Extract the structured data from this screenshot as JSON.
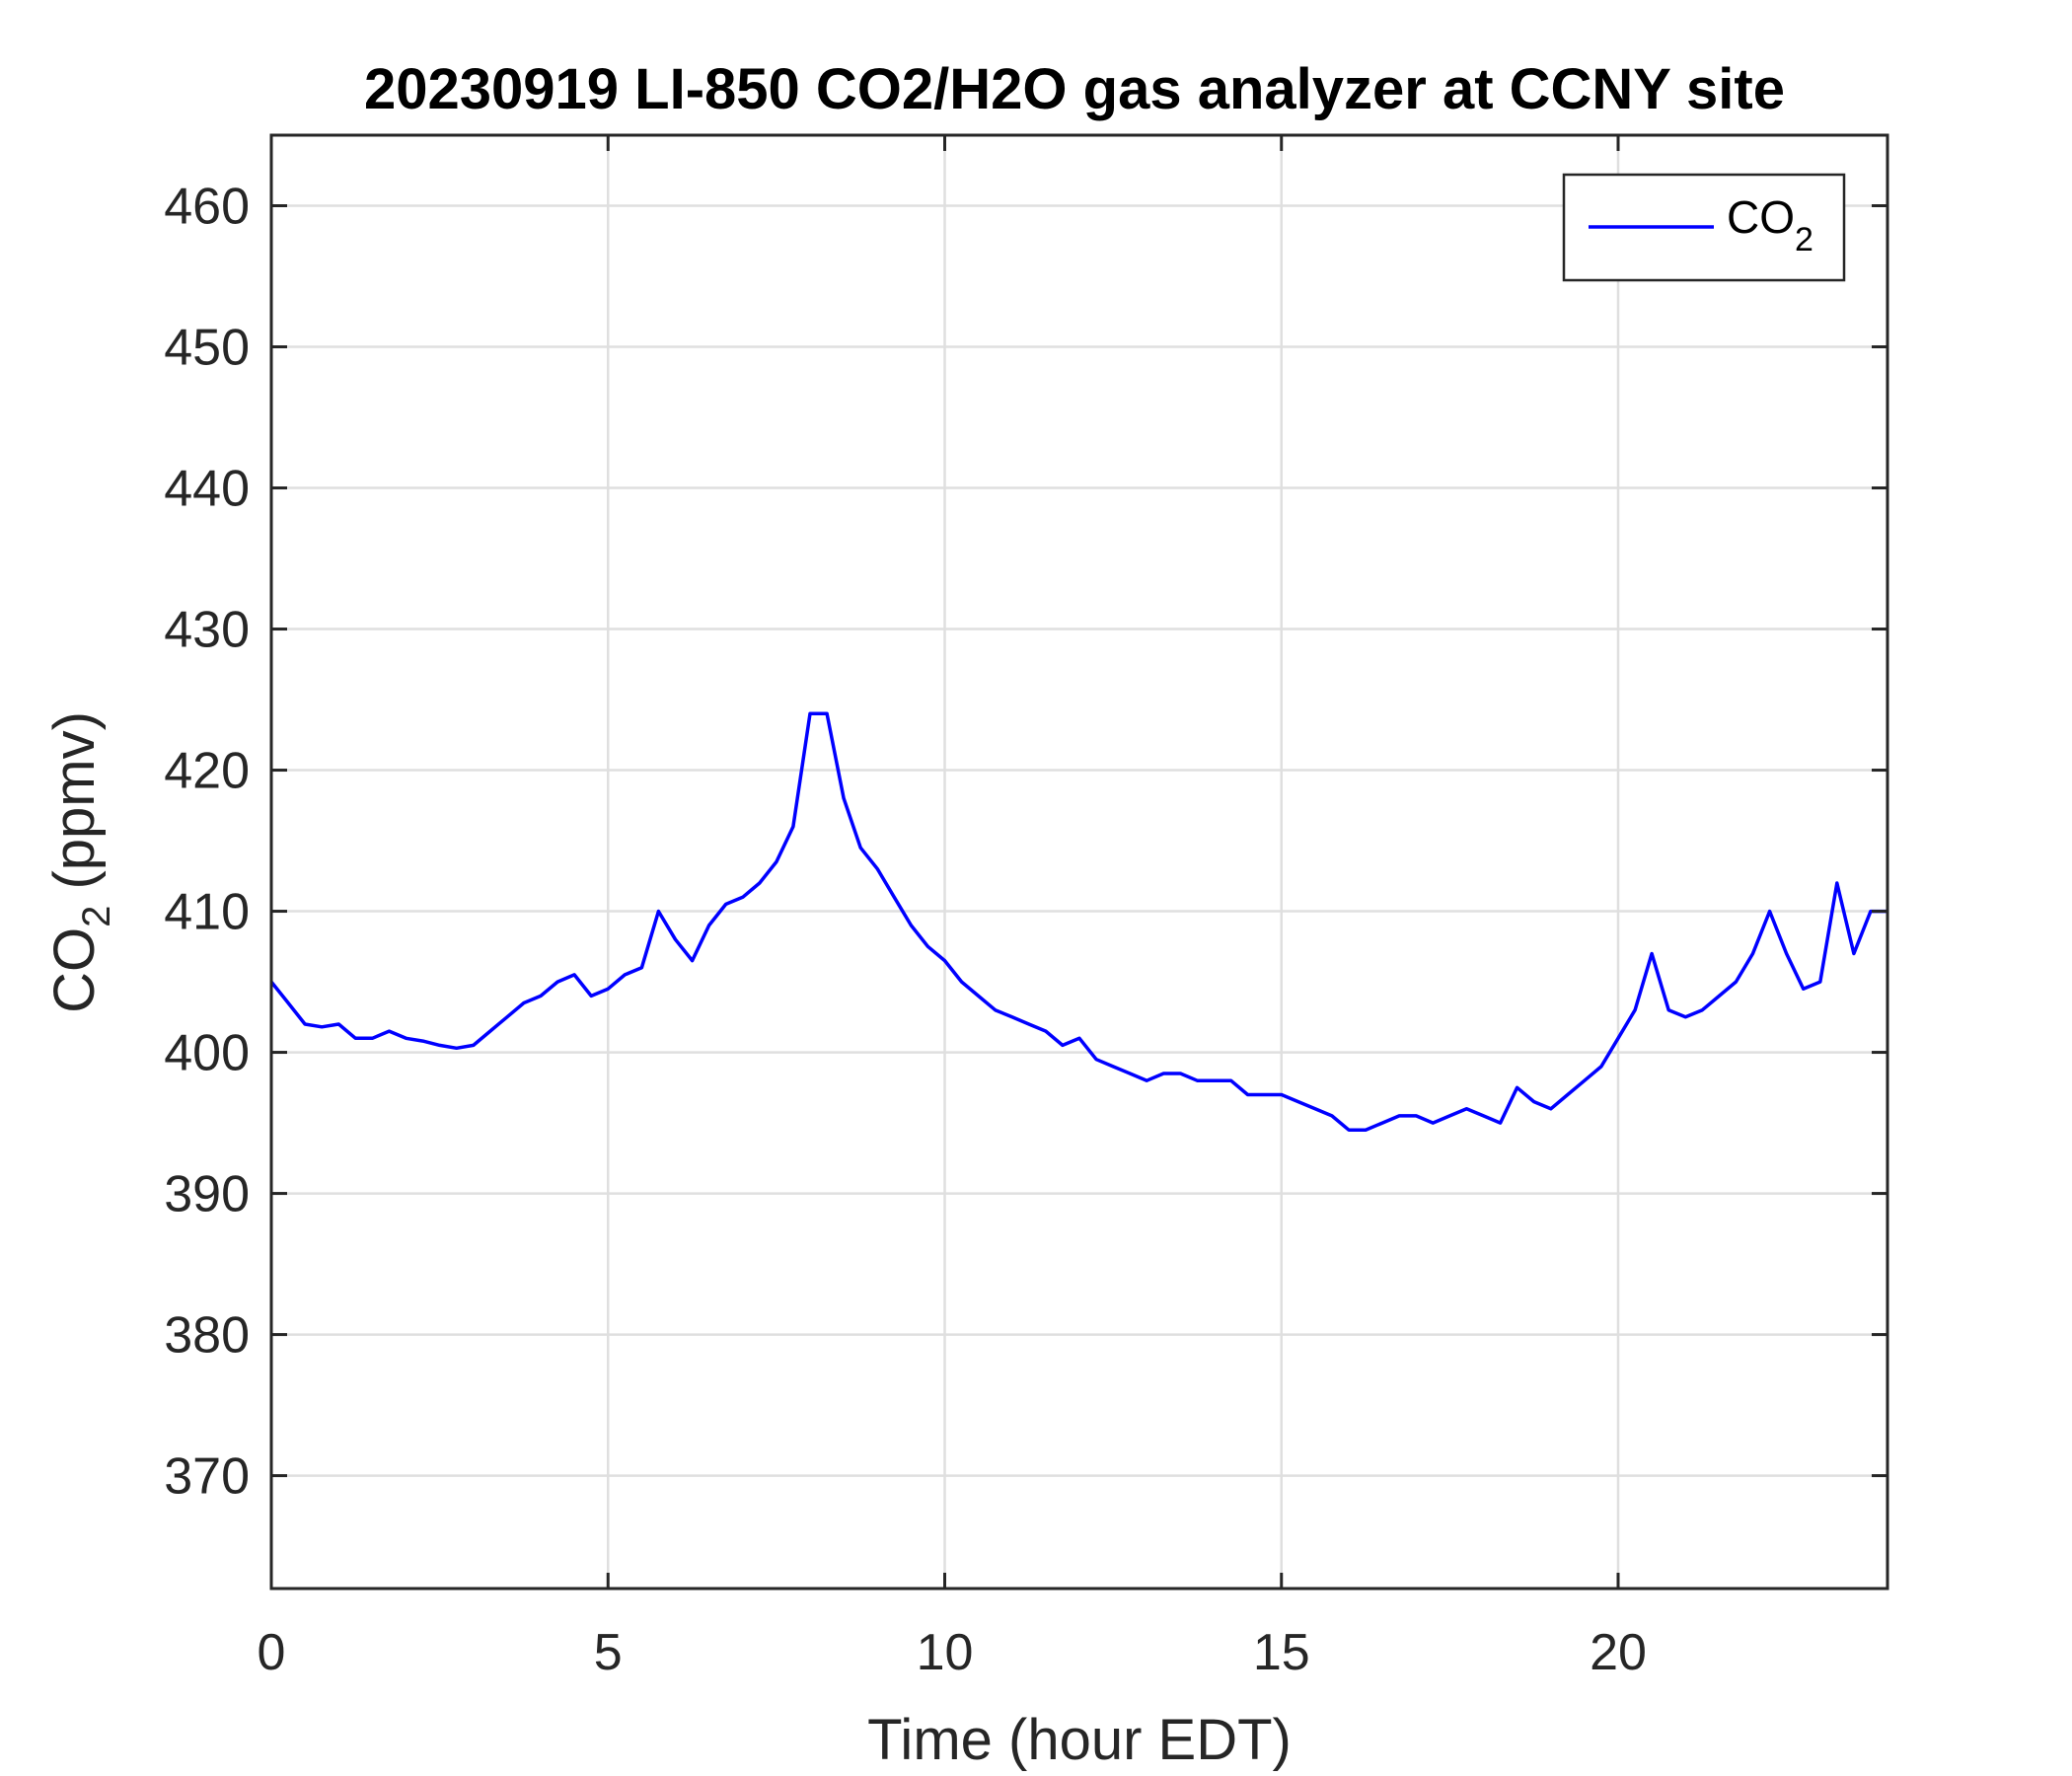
{
  "chart_data": {
    "type": "line",
    "title": "20230919 LI-850 CO2/H2O gas analyzer at CCNY site",
    "xlabel": "Time (hour EDT)",
    "ylabel": {
      "main": "CO",
      "sub": "2",
      "tail": " (ppmv)"
    },
    "xlim": [
      0,
      24
    ],
    "ylim": [
      362,
      465
    ],
    "xticks": [
      0,
      5,
      10,
      15,
      20
    ],
    "yticks": [
      370,
      380,
      390,
      400,
      410,
      420,
      430,
      440,
      450,
      460
    ],
    "grid": true,
    "legend": {
      "position": "top-right",
      "entries": [
        {
          "label": "CO",
          "sub": "2",
          "color": "#0000ff"
        }
      ]
    },
    "series": [
      {
        "name": "CO2",
        "color": "#0000ff",
        "x": [
          0,
          0.25,
          0.5,
          0.75,
          1.0,
          1.25,
          1.5,
          1.75,
          2.0,
          2.25,
          2.5,
          2.75,
          3.0,
          3.25,
          3.5,
          3.75,
          4.0,
          4.25,
          4.5,
          4.75,
          5.0,
          5.25,
          5.5,
          5.75,
          6.0,
          6.25,
          6.5,
          6.75,
          7.0,
          7.25,
          7.5,
          7.75,
          8.0,
          8.25,
          8.5,
          8.75,
          9.0,
          9.25,
          9.5,
          9.75,
          10.0,
          10.25,
          10.5,
          10.75,
          11.0,
          11.25,
          11.5,
          11.75,
          12.0,
          12.25,
          12.5,
          12.75,
          13.0,
          13.25,
          13.5,
          13.75,
          14.0,
          14.25,
          14.5,
          14.75,
          15.0,
          15.25,
          15.5,
          15.75,
          16.0,
          16.25,
          16.5,
          16.75,
          17.0,
          17.25,
          17.5,
          17.75,
          18.0,
          18.25,
          18.5,
          18.75,
          19.0,
          19.25,
          19.5,
          19.75,
          20.0,
          20.25,
          20.5,
          20.75,
          21.0,
          21.25,
          21.5,
          21.75,
          22.0,
          22.25,
          22.5,
          22.75,
          23.0,
          23.25,
          23.5,
          23.75,
          24.0
        ],
        "values": [
          405,
          403.5,
          402,
          401.8,
          402,
          401,
          401,
          401.5,
          401,
          400.8,
          400.5,
          400.3,
          400.5,
          401.5,
          402.5,
          403.5,
          404,
          405,
          405.5,
          404,
          404.5,
          405.5,
          406,
          410,
          408,
          406.5,
          409,
          410.5,
          411,
          412,
          413.5,
          416,
          424,
          424,
          418,
          414.5,
          413,
          411,
          409,
          407.5,
          406.5,
          405,
          404,
          403,
          402.5,
          402,
          401.5,
          400.5,
          401,
          399.5,
          399,
          398.5,
          398,
          398.5,
          398.5,
          398,
          398,
          398,
          397,
          397,
          397,
          396.5,
          396,
          395.5,
          394.5,
          394.5,
          395,
          395.5,
          395.5,
          395,
          395.5,
          396,
          395.5,
          395,
          397.5,
          396.5,
          396,
          397,
          398,
          399,
          401,
          403,
          407,
          403,
          402.5,
          403,
          404,
          405,
          407,
          410,
          407,
          404.5,
          405,
          412,
          407,
          410,
          410
        ]
      }
    ]
  }
}
